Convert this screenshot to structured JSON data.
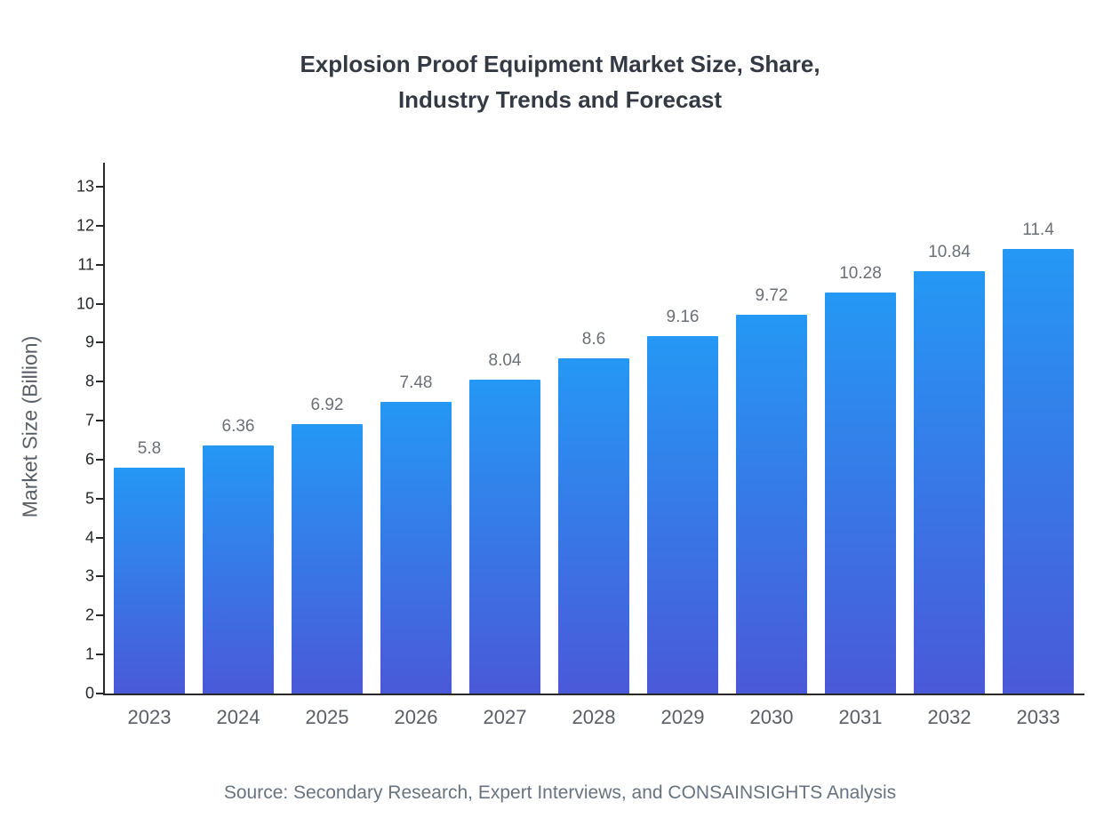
{
  "chart_data": {
    "type": "bar",
    "title": "Explosion Proof Equipment Market Size, Share, Industry Trends and Forecast",
    "title_lines": [
      "Explosion Proof Equipment Market Size, Share,",
      "Industry Trends and Forecast"
    ],
    "categories": [
      "2023",
      "2024",
      "2025",
      "2026",
      "2027",
      "2028",
      "2029",
      "2030",
      "2031",
      "2032",
      "2033"
    ],
    "values": [
      5.8,
      6.36,
      6.92,
      7.48,
      8.04,
      8.6,
      9.16,
      9.72,
      10.28,
      10.84,
      11.4
    ],
    "value_labels": [
      "5.8",
      "6.36",
      "6.92",
      "7.48",
      "8.04",
      "8.6",
      "9.16",
      "9.72",
      "10.28",
      "10.84",
      "11.4"
    ],
    "xlabel": "",
    "ylabel": "Market Size (Billion)",
    "ylim": [
      0,
      13
    ],
    "ytick_step": 1,
    "grid": false,
    "legend": false,
    "source": "Source: Secondary Research, Expert Interviews, and CONSAINSIGHTS Analysis",
    "colors": {
      "bar_top": "#2598f4",
      "bar_bottom": "#4a59d8",
      "title": "#343a44",
      "axis": "#26282b",
      "tick_label": "#26282b",
      "x_label": "#5a5f66",
      "value_label": "#6b6f76",
      "source": "#68737f"
    }
  }
}
